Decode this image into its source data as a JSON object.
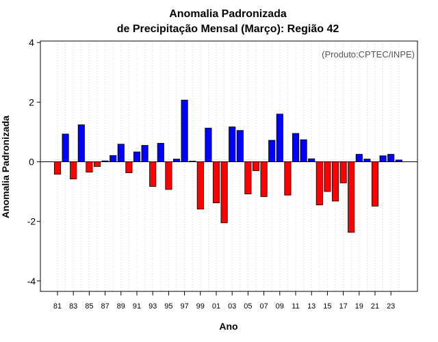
{
  "chart_data": {
    "type": "bar",
    "title": [
      "Anomalia Padronizada",
      "de Precipitação Mensal (Março): Região 42"
    ],
    "xlabel": "Ano",
    "ylabel": "Anomalia Padronizada",
    "annotation": "(Produto:CPTEC/INPE)",
    "ylim": [
      -4.35,
      4.05
    ],
    "yticks": [
      -4,
      -2,
      0,
      2,
      4
    ],
    "ytick_labels": [
      "-4",
      "-2",
      "0",
      "2",
      "4"
    ],
    "xtick_labels": [
      "81",
      "83",
      "85",
      "87",
      "89",
      "91",
      "93",
      "95",
      "97",
      "99",
      "01",
      "03",
      "05",
      "07",
      "09",
      "11",
      "13",
      "15",
      "17",
      "19",
      "21",
      "23"
    ],
    "categories": [
      "1981",
      "1982",
      "1983",
      "1984",
      "1985",
      "1986",
      "1987",
      "1988",
      "1989",
      "1990",
      "1991",
      "1992",
      "1993",
      "1994",
      "1995",
      "1996",
      "1997",
      "1998",
      "1999",
      "2000",
      "2001",
      "2002",
      "2003",
      "2004",
      "2005",
      "2006",
      "2007",
      "2008",
      "2009",
      "2010",
      "2011",
      "2012",
      "2013",
      "2014",
      "2015",
      "2016",
      "2017",
      "2018",
      "2019",
      "2020",
      "2021",
      "2022",
      "2023",
      "2024"
    ],
    "values": [
      -0.42,
      0.93,
      -0.58,
      1.24,
      -0.35,
      -0.16,
      0.03,
      0.21,
      0.59,
      -0.37,
      0.33,
      0.55,
      -0.83,
      0.62,
      -0.93,
      0.09,
      2.07,
      0.02,
      -1.59,
      1.13,
      -1.38,
      -2.05,
      1.17,
      1.05,
      -1.08,
      -0.3,
      -1.17,
      0.72,
      1.6,
      -1.12,
      0.95,
      0.74,
      0.1,
      -1.45,
      -1.0,
      -1.32,
      -0.71,
      -2.37,
      0.25,
      0.09,
      -1.49,
      0.2,
      0.25,
      0.06
    ],
    "colors": {
      "positive": "#0000ff",
      "negative": "#ff0000",
      "grid": "#d3d3d3"
    },
    "grid": true
  }
}
